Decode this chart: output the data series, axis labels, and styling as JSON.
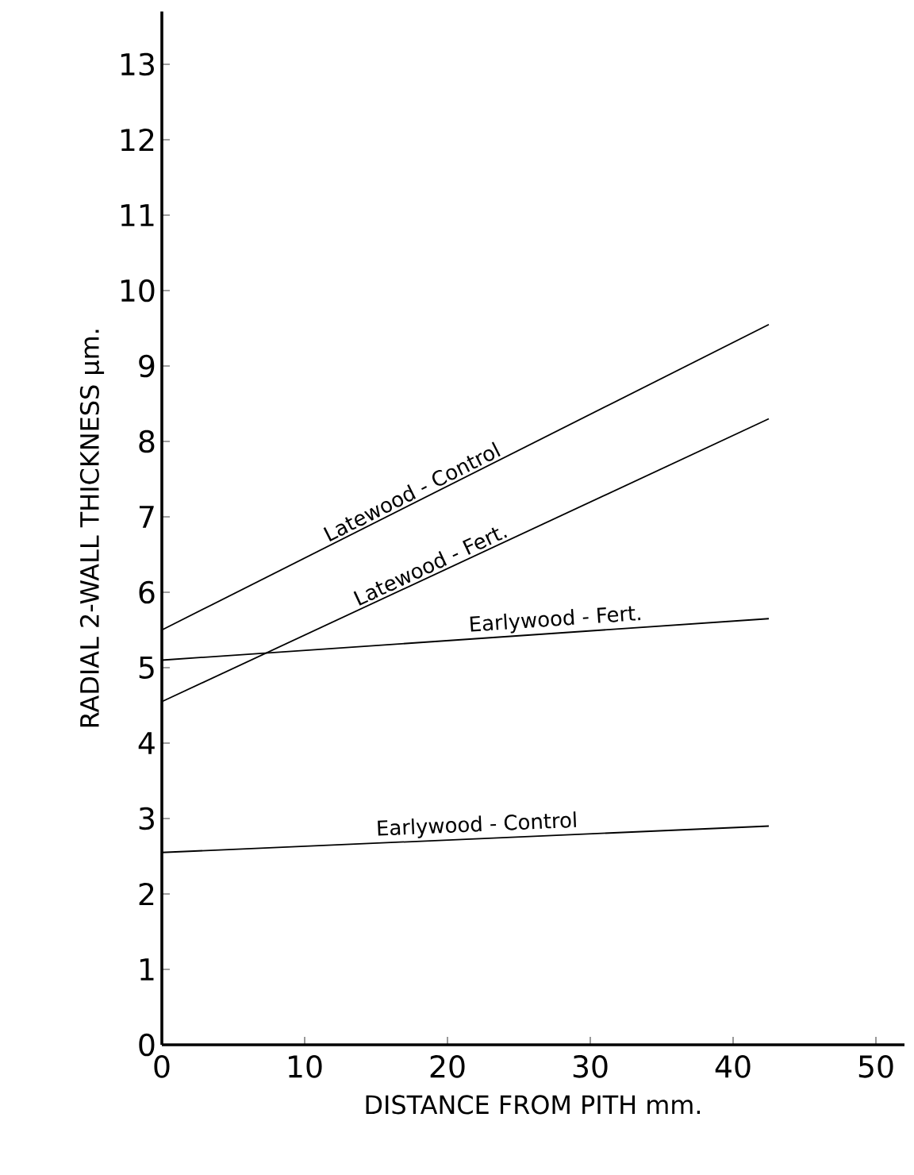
{
  "chart_data": {
    "type": "line",
    "xlabel": "DISTANCE FROM PITH    mm.",
    "ylabel": "RADIAL 2-WALL THICKNESS   µm.",
    "x": [
      0,
      42.5
    ],
    "series": [
      {
        "name": "Latewood - Control",
        "color": "#000000",
        "values": [
          5.5,
          9.55
        ]
      },
      {
        "name": "Latewood - Fert.",
        "color": "#000000",
        "values": [
          4.55,
          8.3
        ]
      },
      {
        "name": "Earlywood - Fert.",
        "color": "#000000",
        "values": [
          5.1,
          5.65
        ]
      },
      {
        "name": "Earlywood - Control",
        "color": "#000000",
        "values": [
          2.55,
          2.9
        ]
      }
    ],
    "xlim": [
      0,
      52
    ],
    "ylim": [
      0,
      13.7
    ],
    "xticks": [
      0,
      10,
      20,
      30,
      40,
      50
    ],
    "yticks": [
      0,
      1,
      2,
      3,
      4,
      5,
      6,
      7,
      8,
      9,
      10,
      11,
      12,
      13
    ],
    "grid": false,
    "marker": "none",
    "line_style": "solid"
  }
}
